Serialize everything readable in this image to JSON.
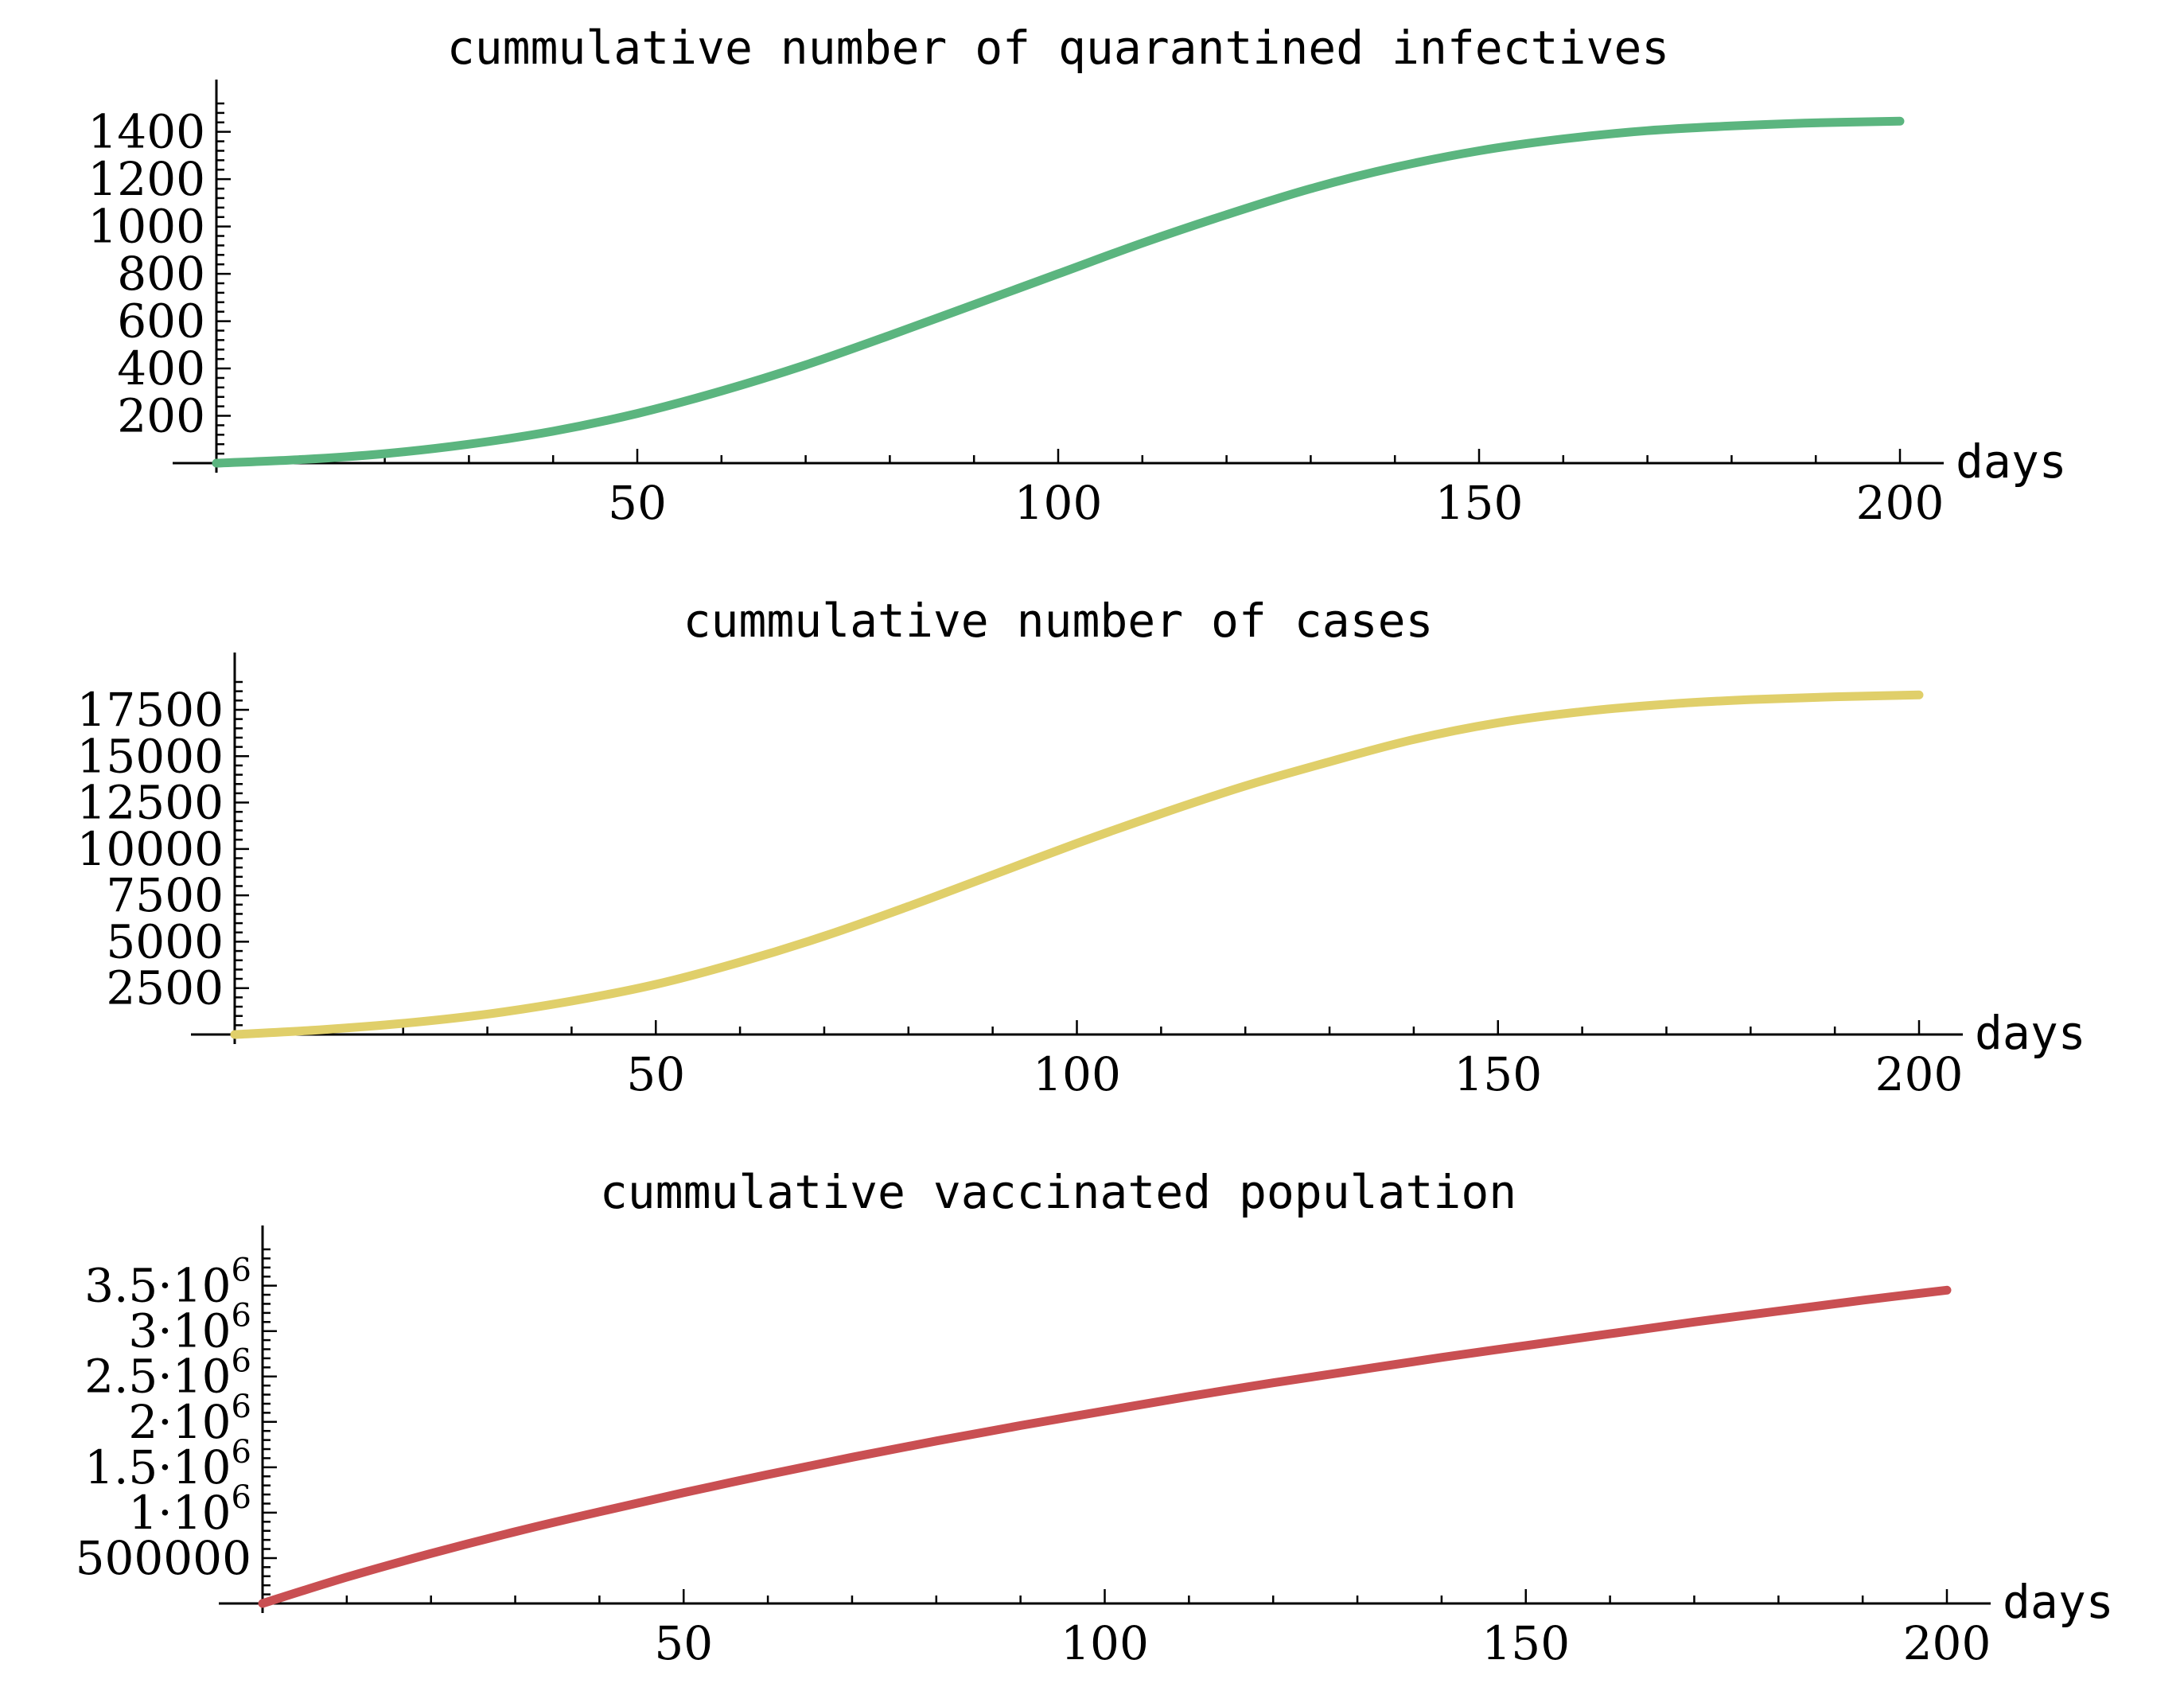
{
  "chart_data": [
    {
      "type": "line",
      "title": "cummulative number of quarantined infectives",
      "xlabel": "days",
      "ylabel": "",
      "xlim": [
        0,
        200
      ],
      "ylim": [
        0,
        1520
      ],
      "x_ticks": [
        50,
        100,
        150,
        200
      ],
      "x_tick_labels": [
        "50",
        "100",
        "150",
        "200"
      ],
      "y_ticks": [
        200,
        400,
        600,
        800,
        1000,
        1200,
        1400
      ],
      "y_tick_labels": [
        "200",
        "400",
        "600",
        "800",
        "1000",
        "1200",
        "1400"
      ],
      "grid": false,
      "color": "#5bb57f",
      "series": [
        {
          "x": [
            0,
            10,
            20,
            30,
            40,
            50,
            60,
            70,
            80,
            90,
            100,
            110,
            120,
            130,
            140,
            150,
            160,
            170,
            180,
            190,
            200
          ],
          "values": [
            0,
            15,
            40,
            80,
            135,
            210,
            305,
            415,
            540,
            670,
            800,
            930,
            1050,
            1160,
            1250,
            1320,
            1370,
            1405,
            1425,
            1438,
            1445
          ]
        }
      ]
    },
    {
      "type": "line",
      "title": "cummulative number of cases",
      "xlabel": "days",
      "ylabel": "",
      "xlim": [
        0,
        200
      ],
      "ylim": [
        0,
        19300
      ],
      "x_ticks": [
        50,
        100,
        150,
        200
      ],
      "x_tick_labels": [
        "50",
        "100",
        "150",
        "200"
      ],
      "y_ticks": [
        2500,
        5000,
        7500,
        10000,
        12500,
        15000,
        17500
      ],
      "y_tick_labels": [
        "2500",
        "5000",
        "7500",
        "10000",
        "12500",
        "15000",
        "17500"
      ],
      "grid": false,
      "color": "#e0cf6a",
      "series": [
        {
          "x": [
            0,
            10,
            20,
            30,
            40,
            50,
            60,
            70,
            80,
            90,
            100,
            110,
            120,
            130,
            140,
            150,
            160,
            170,
            180,
            190,
            200
          ],
          "values": [
            0,
            250,
            600,
            1100,
            1800,
            2700,
            3900,
            5300,
            6900,
            8600,
            10300,
            11900,
            13400,
            14700,
            15900,
            16800,
            17400,
            17800,
            18050,
            18200,
            18300
          ]
        }
      ]
    },
    {
      "type": "line",
      "title": "cummulative vaccinated population",
      "xlabel": "days",
      "ylabel": "",
      "xlim": [
        0,
        200
      ],
      "ylim": [
        0,
        3900000
      ],
      "x_ticks": [
        50,
        100,
        150,
        200
      ],
      "x_tick_labels": [
        "50",
        "100",
        "150",
        "200"
      ],
      "y_ticks": [
        500000,
        1000000,
        1500000,
        2000000,
        2500000,
        3000000,
        3500000
      ],
      "y_tick_labels": [
        {
          "mantissa": "500000",
          "exponent": ""
        },
        {
          "mantissa": "1·10",
          "exponent": "6"
        },
        {
          "mantissa": "1.5·10",
          "exponent": "6"
        },
        {
          "mantissa": "2·10",
          "exponent": "6"
        },
        {
          "mantissa": "2.5·10",
          "exponent": "6"
        },
        {
          "mantissa": "3·10",
          "exponent": "6"
        },
        {
          "mantissa": "3.5·10",
          "exponent": "6"
        }
      ],
      "grid": false,
      "color": "#c94f52",
      "series": [
        {
          "x": [
            0,
            10,
            20,
            30,
            40,
            50,
            60,
            70,
            80,
            90,
            100,
            110,
            120,
            130,
            140,
            150,
            160,
            170,
            180,
            190,
            200
          ],
          "values": [
            0,
            290000,
            550000,
            790000,
            1010000,
            1220000,
            1420000,
            1610000,
            1790000,
            1960000,
            2120000,
            2280000,
            2430000,
            2570000,
            2710000,
            2840000,
            2970000,
            3100000,
            3220000,
            3340000,
            3450000
          ]
        }
      ]
    }
  ]
}
